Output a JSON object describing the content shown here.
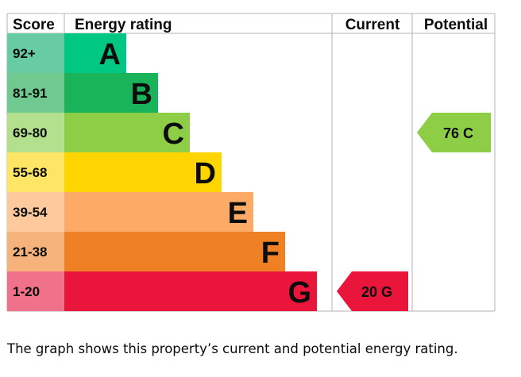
{
  "chart_data": {
    "type": "bar",
    "title": "Energy rating",
    "headers": {
      "score": "Score",
      "rating": "Energy rating",
      "current": "Current",
      "potential": "Potential"
    },
    "bands": [
      {
        "letter": "A",
        "range": "92+",
        "color": "#00c781",
        "score_color": "#67cba3"
      },
      {
        "letter": "B",
        "range": "81-91",
        "color": "#19b459",
        "score_color": "#70c98e"
      },
      {
        "letter": "C",
        "range": "69-80",
        "color": "#8dce46",
        "score_color": "#b2e08c"
      },
      {
        "letter": "D",
        "range": "55-68",
        "color": "#ffd500",
        "score_color": "#ffe566"
      },
      {
        "letter": "E",
        "range": "39-54",
        "color": "#fcaa65",
        "score_color": "#fdc99d"
      },
      {
        "letter": "F",
        "range": "21-38",
        "color": "#ef8023",
        "score_color": "#f5b27b"
      },
      {
        "letter": "G",
        "range": "1-20",
        "color": "#e9153b",
        "score_color": "#f0728a"
      }
    ],
    "current": {
      "value": 20,
      "band": "G",
      "label": "20 G"
    },
    "potential": {
      "value": 76,
      "band": "C",
      "label": "76 C"
    }
  },
  "caption": "The graph shows this property’s current and potential energy rating."
}
